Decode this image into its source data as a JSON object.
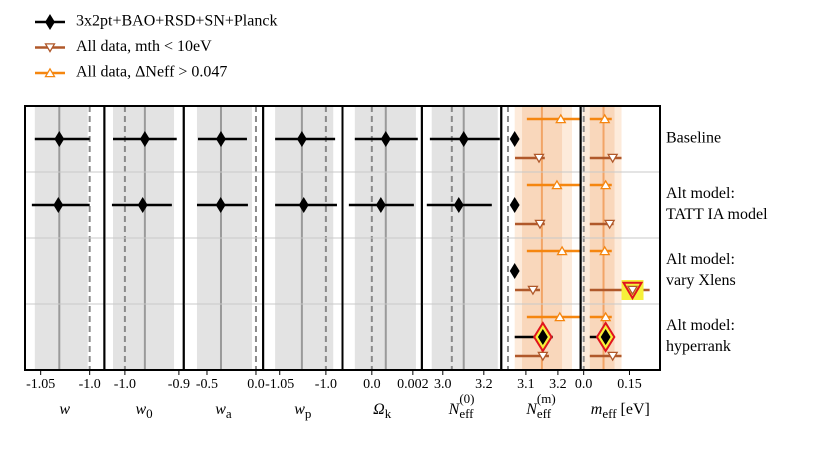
{
  "chart_data": {
    "type": "forest",
    "rows": [
      [
        "Baseline"
      ],
      [
        "Alt model:",
        "TATT IA model"
      ],
      [
        "Alt model:",
        "vary Xlens"
      ],
      [
        "Alt model:",
        "hyperrank"
      ]
    ],
    "series": [
      {
        "name": "3x2pt+BAO+RSD+SN+Planck",
        "color": "#000000",
        "marker": "diamond"
      },
      {
        "name": "All data, mth < 10eV",
        "color": "#b0582a",
        "marker": "triangle-down"
      },
      {
        "name": "All data, ΔNeff > 0.047",
        "color": "#f5860f",
        "marker": "triangle-up"
      }
    ],
    "panels": [
      {
        "label": {
          "base": "w"
        },
        "xlim": [
          -1.066,
          -0.985
        ],
        "xticks": [
          -1.05,
          {
            "value": -1.0,
            "label": "-1.0"
          }
        ],
        "fiducial": -1.0,
        "center": -1.031,
        "center_color": "#9a9a9a",
        "bands": [
          {
            "lo": -1.056,
            "hi": -1.002,
            "color": "#e3e3e3"
          }
        ],
        "series": [
          {
            "values": [
              -1.031,
              -1.032,
              null,
              null
            ],
            "lo": [
              -1.056,
              -1.059,
              null,
              null
            ],
            "hi": [
              -1.0,
              -1.0,
              null,
              null
            ],
            "highlight": [
              false,
              false,
              false,
              false
            ]
          },
          {
            "values": [
              null,
              null,
              null,
              null
            ],
            "lo": [
              null,
              null,
              null,
              null
            ],
            "hi": [
              null,
              null,
              null,
              null
            ],
            "highlight": [
              false,
              false,
              false,
              false
            ]
          },
          {
            "values": [
              null,
              null,
              null,
              null
            ],
            "lo": [
              null,
              null,
              null,
              null
            ],
            "hi": [
              null,
              null,
              null,
              null
            ],
            "highlight": [
              false,
              false,
              false,
              false
            ]
          }
        ]
      },
      {
        "label": {
          "base": "w",
          "sub": "0"
        },
        "xlim": [
          -1.038,
          -0.891
        ],
        "xticks": [
          {
            "value": -1.0,
            "label": "-1.0"
          },
          -0.9
        ],
        "fiducial": -1.0,
        "center": -0.963,
        "center_color": "#9a9a9a",
        "bands": [
          {
            "lo": -1.022,
            "hi": -0.909,
            "color": "#e3e3e3"
          }
        ],
        "series": [
          {
            "values": [
              -0.963,
              -0.967,
              null,
              null
            ],
            "lo": [
              -1.022,
              -1.024,
              null,
              null
            ],
            "hi": [
              -0.904,
              -0.913,
              null,
              null
            ],
            "highlight": [
              false,
              false,
              false,
              false
            ]
          },
          {
            "values": [
              null,
              null,
              null,
              null
            ],
            "lo": [
              null,
              null,
              null,
              null
            ],
            "hi": [
              null,
              null,
              null,
              null
            ],
            "highlight": [
              false,
              false,
              false,
              false
            ]
          },
          {
            "values": [
              null,
              null,
              null,
              null
            ],
            "lo": [
              null,
              null,
              null,
              null
            ],
            "hi": [
              null,
              null,
              null,
              null
            ],
            "highlight": [
              false,
              false,
              false,
              false
            ]
          }
        ]
      },
      {
        "label": {
          "base": "w",
          "sub": "a"
        },
        "xlim": [
          -0.737,
          0.073
        ],
        "xticks": [
          -0.5,
          {
            "value": 0,
            "label": "0.0"
          }
        ],
        "fiducial": 0,
        "center": -0.357,
        "center_color": "#9a9a9a",
        "bands": [
          {
            "lo": -0.602,
            "hi": -0.041,
            "color": "#e3e3e3"
          }
        ],
        "series": [
          {
            "values": [
              -0.357,
              -0.36,
              null,
              null
            ],
            "lo": [
              -0.592,
              -0.602,
              null,
              null
            ],
            "hi": [
              -0.092,
              -0.082,
              null,
              null
            ],
            "highlight": [
              false,
              false,
              false,
              false
            ]
          },
          {
            "values": [
              null,
              null,
              null,
              null
            ],
            "lo": [
              null,
              null,
              null,
              null
            ],
            "hi": [
              null,
              null,
              null,
              null
            ],
            "highlight": [
              false,
              false,
              false,
              false
            ]
          },
          {
            "values": [
              null,
              null,
              null,
              null
            ],
            "lo": [
              null,
              null,
              null,
              null
            ],
            "hi": [
              null,
              null,
              null,
              null
            ],
            "highlight": [
              false,
              false,
              false,
              false
            ]
          }
        ]
      },
      {
        "label": {
          "base": "w",
          "sub": "p"
        },
        "xlim": [
          -1.068,
          -0.982
        ],
        "xticks": [
          -1.05,
          {
            "value": -1.0,
            "label": "-1.0"
          }
        ],
        "fiducial": -1.0,
        "center": -1.026,
        "center_color": "#9a9a9a",
        "bands": [
          {
            "lo": -1.055,
            "hi": -0.992,
            "color": "#e3e3e3"
          }
        ],
        "series": [
          {
            "values": [
              -1.026,
              -1.024,
              null,
              null
            ],
            "lo": [
              -1.055,
              -1.055,
              null,
              null
            ],
            "hi": [
              -0.99,
              -0.988,
              null,
              null
            ],
            "highlight": [
              false,
              false,
              false,
              false
            ]
          },
          {
            "values": [
              null,
              null,
              null,
              null
            ],
            "lo": [
              null,
              null,
              null,
              null
            ],
            "hi": [
              null,
              null,
              null,
              null
            ],
            "highlight": [
              false,
              false,
              false,
              false
            ]
          },
          {
            "values": [
              null,
              null,
              null,
              null
            ],
            "lo": [
              null,
              null,
              null,
              null
            ],
            "hi": [
              null,
              null,
              null,
              null
            ],
            "highlight": [
              false,
              false,
              false,
              false
            ]
          }
        ]
      },
      {
        "label": {
          "base": "Ω",
          "sub": "k"
        },
        "xlim": [
          -0.00143,
          0.00244
        ],
        "xticks": [
          {
            "value": 0,
            "label": "0.0"
          },
          0.002
        ],
        "fiducial": 0,
        "center": 0.00068,
        "center_color": "#9a9a9a",
        "bands": [
          {
            "lo": -0.00083,
            "hi": 0.00215,
            "color": "#e3e3e3"
          }
        ],
        "series": [
          {
            "values": [
              0.00068,
              0.00044,
              null,
              null
            ],
            "lo": [
              -0.00083,
              -0.00112,
              null,
              null
            ],
            "hi": [
              0.00224,
              0.00205,
              null,
              null
            ],
            "highlight": [
              false,
              false,
              false,
              false
            ]
          },
          {
            "values": [
              null,
              null,
              null,
              null
            ],
            "lo": [
              null,
              null,
              null,
              null
            ],
            "hi": [
              null,
              null,
              null,
              null
            ],
            "highlight": [
              false,
              false,
              false,
              false
            ]
          },
          {
            "values": [
              null,
              null,
              null,
              null
            ],
            "lo": [
              null,
              null,
              null,
              null
            ],
            "hi": [
              null,
              null,
              null,
              null
            ],
            "highlight": [
              false,
              false,
              false,
              false
            ]
          }
        ]
      },
      {
        "label": {
          "base": "N",
          "sub": "eff",
          "sup": "(0)"
        },
        "xlim": [
          2.898,
          3.285
        ],
        "xticks": [
          {
            "value": 3.0,
            "label": "3.0"
          },
          3.2
        ],
        "fiducial": 3.044,
        "center": 3.102,
        "center_color": "#9a9a9a",
        "bands": [
          {
            "lo": 2.946,
            "hi": 3.268,
            "color": "#e3e3e3"
          }
        ],
        "series": [
          {
            "values": [
              3.102,
              3.078,
              null,
              null
            ],
            "lo": [
              2.937,
              2.922,
              null,
              null
            ],
            "hi": [
              3.278,
              3.239,
              null,
              null
            ],
            "highlight": [
              false,
              false,
              false,
              false
            ]
          },
          {
            "values": [
              null,
              null,
              null,
              null
            ],
            "lo": [
              null,
              null,
              null,
              null
            ],
            "hi": [
              null,
              null,
              null,
              null
            ],
            "highlight": [
              false,
              false,
              false,
              false
            ]
          },
          {
            "values": [
              null,
              null,
              null,
              null
            ],
            "lo": [
              null,
              null,
              null,
              null
            ],
            "hi": [
              null,
              null,
              null,
              null
            ],
            "highlight": [
              false,
              false,
              false,
              false
            ]
          }
        ]
      },
      {
        "label": {
          "base": "N",
          "sub": "eff",
          "sup": "(m)"
        },
        "xlim": [
          3.023,
          3.271
        ],
        "xticks": [
          3.1,
          3.2
        ],
        "fiducial": 3.044,
        "center": 3.15,
        "center_color": "#f2a466",
        "bands": [
          {
            "lo": 3.065,
            "hi": 3.244,
            "color": "#fdebdb"
          },
          {
            "lo": 3.088,
            "hi": 3.213,
            "color": "#f9d7bb"
          }
        ],
        "series": [
          {
            "values": [
              3.065,
              3.065,
              3.065,
              3.153
            ],
            "lo": [
              null,
              null,
              null,
              3.065
            ],
            "hi": [
              null,
              null,
              null,
              3.184
            ],
            "highlight": [
              false,
              false,
              false,
              true
            ]
          },
          {
            "values": [
              3.141,
              3.144,
              3.122,
              3.153
            ],
            "lo": [
              3.066,
              3.066,
              3.066,
              3.066
            ],
            "hi": [
              3.159,
              3.159,
              3.144,
              3.172
            ],
            "highlight": [
              false,
              false,
              false,
              false
            ]
          },
          {
            "values": [
              3.209,
              3.197,
              3.213,
              3.206
            ],
            "lo": [
              3.103,
              3.103,
              3.103,
              3.103
            ],
            "hi": [
              3.27,
              3.27,
              3.27,
              3.27
            ],
            "highlight": [
              false,
              false,
              false,
              false
            ]
          }
        ]
      },
      {
        "label": {
          "base": "m",
          "sub": "eff",
          "unit": " [eV]"
        },
        "xlim": [
          -0.01,
          0.25
        ],
        "xticks": [
          {
            "value": 0,
            "label": "0.0"
          },
          0.15
        ],
        "fiducial": 0,
        "center": 0.065,
        "center_color": "#f2a466",
        "bands": [
          {
            "lo": -0.003,
            "hi": 0.124,
            "color": "#fdebdb"
          },
          {
            "lo": 0.02,
            "hi": 0.101,
            "color": "#f9d7bb"
          }
        ],
        "series": [
          {
            "values": [
              null,
              null,
              null,
              0.072
            ],
            "lo": [
              null,
              null,
              null,
              0.02
            ],
            "hi": [
              null,
              null,
              null,
              0.101
            ],
            "highlight": [
              false,
              false,
              false,
              true
            ]
          },
          {
            "values": [
              0.095,
              0.085,
              0.16,
              0.095
            ],
            "lo": [
              0.02,
              0.02,
              0.02,
              0.02
            ],
            "hi": [
              0.124,
              0.098,
              0.216,
              0.124
            ],
            "highlight": [
              false,
              false,
              true,
              false
            ]
          },
          {
            "values": [
              0.069,
              0.072,
              0.069,
              0.072
            ],
            "lo": [
              0.02,
              0.02,
              0.02,
              0.02
            ],
            "hi": [
              0.092,
              0.092,
              0.092,
              0.092
            ],
            "highlight": [
              false,
              false,
              false,
              false
            ]
          }
        ]
      }
    ]
  }
}
